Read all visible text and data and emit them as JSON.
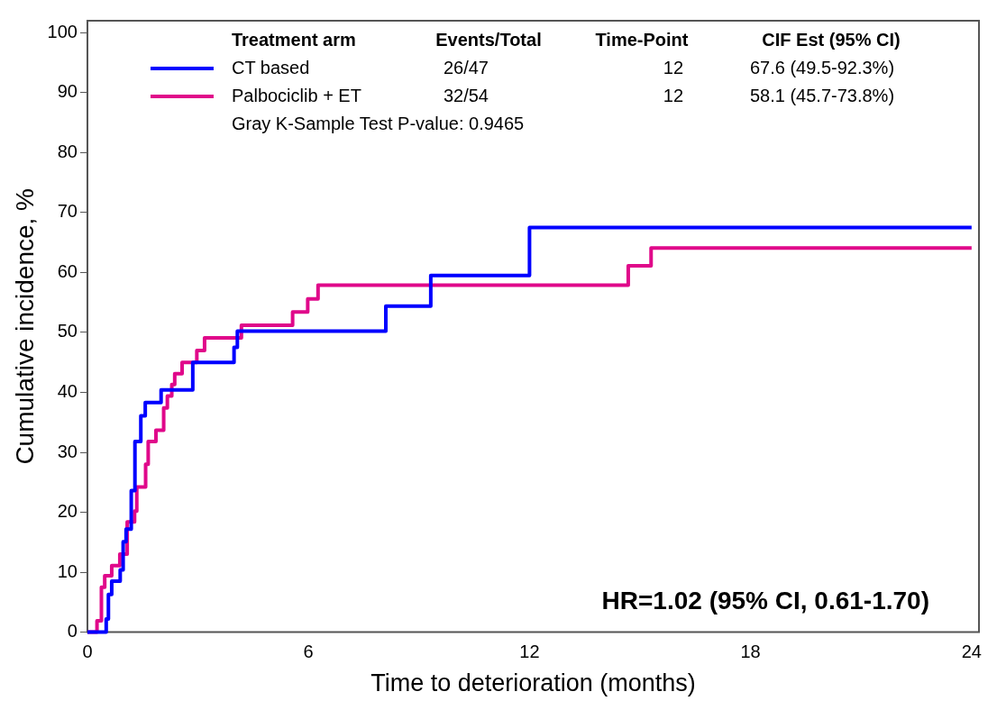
{
  "chart_data": {
    "type": "step",
    "xlabel": "Time to deterioration (months)",
    "ylabel": "Cumulative incidence, %",
    "xlim": [
      0,
      24.2
    ],
    "xticks": [
      0,
      6,
      12,
      18,
      24
    ],
    "ylim": [
      0,
      102
    ],
    "yticks": [
      0,
      10,
      20,
      30,
      40,
      50,
      60,
      70,
      80,
      90,
      100
    ],
    "grid": false,
    "legend": "top",
    "line_style": "solid",
    "marker": "none",
    "series": [
      {
        "name": "CT based",
        "color": "#0000ff",
        "x": [
          0,
          0.51,
          0.57,
          0.66,
          0.89,
          0.97,
          1.05,
          1.19,
          1.29,
          1.45,
          1.57,
          2.0,
          2.86,
          3.98,
          4.07,
          8.1,
          9.32,
          12.0,
          24
        ],
        "values": [
          0,
          2.2,
          6.3,
          8.5,
          10.4,
          15.1,
          17.2,
          23.6,
          31.8,
          36.1,
          38.3,
          40.4,
          45.0,
          47.5,
          50.2,
          54.4,
          59.5,
          67.5,
          67.5
        ]
      },
      {
        "name": "Palbociclib + ET",
        "color": "#e0088a",
        "x": [
          0,
          0.26,
          0.38,
          0.47,
          0.66,
          0.88,
          1.08,
          1.28,
          1.34,
          1.58,
          1.65,
          1.86,
          2.07,
          2.17,
          2.29,
          2.37,
          2.57,
          2.97,
          3.18,
          4.18,
          5.57,
          5.98,
          6.26,
          14.68,
          15.3,
          24
        ],
        "values": [
          0,
          1.9,
          7.5,
          9.4,
          11.1,
          13.0,
          18.4,
          20.2,
          24.2,
          28.0,
          31.8,
          33.7,
          37.4,
          39.4,
          41.3,
          43.1,
          45.0,
          47.0,
          49.1,
          51.2,
          53.4,
          55.6,
          57.9,
          61.1,
          64.1,
          64.1
        ]
      }
    ],
    "annotations": [
      "Treatment arm",
      "Events/Total",
      "Time-Point",
      "CIF Est (95% CI)",
      "26/47",
      "12",
      "67.6 (49.5-92.3%)",
      "32/54",
      "12",
      "58.1 (45.7-73.8%)",
      "Gray K-Sample Test P-value: 0.9465",
      "HR=1.02 (95% CI, 0.61-1.70)"
    ]
  }
}
